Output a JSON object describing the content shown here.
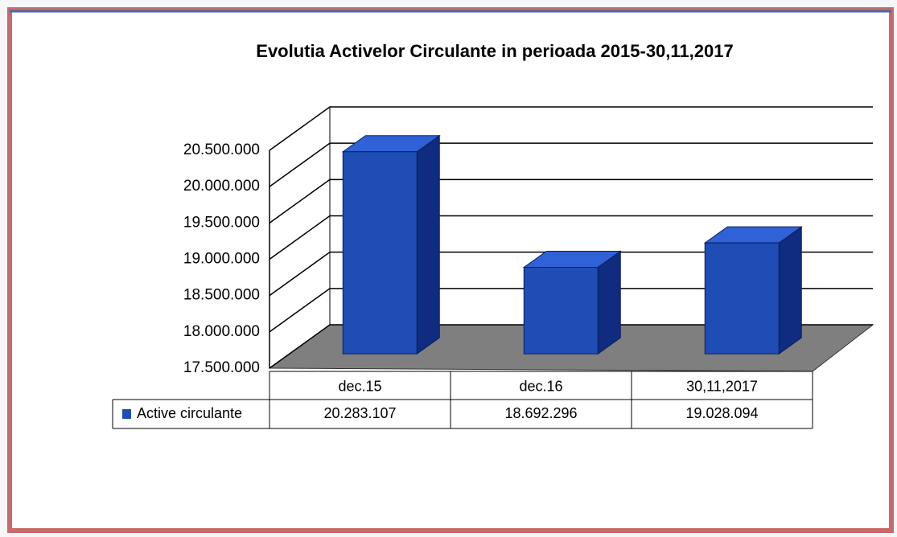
{
  "chart_data": {
    "type": "bar3d",
    "title": "Evolutia Activelor Circulante in perioada 2015-30,11,2017",
    "categories": [
      "dec.15",
      "dec.16",
      "30,11,2017"
    ],
    "series": [
      {
        "name": "Active circulante",
        "color": "#1e4db5",
        "values": [
          20283107,
          18692296,
          19028094
        ],
        "value_labels": [
          "20.283.107",
          "18.692.296",
          "19.028.094"
        ]
      }
    ],
    "ylim": [
      17500000,
      20500000
    ],
    "yticks": [
      {
        "value": 17500000,
        "label": "17.500.000"
      },
      {
        "value": 18000000,
        "label": "18.000.000"
      },
      {
        "value": 18500000,
        "label": "18.500.000"
      },
      {
        "value": 19000000,
        "label": "19.000.000"
      },
      {
        "value": 19500000,
        "label": "19.500.000"
      },
      {
        "value": 20000000,
        "label": "20.000.000"
      },
      {
        "value": 20500000,
        "label": "20.500.000"
      }
    ],
    "grid": true,
    "data_table": true
  }
}
